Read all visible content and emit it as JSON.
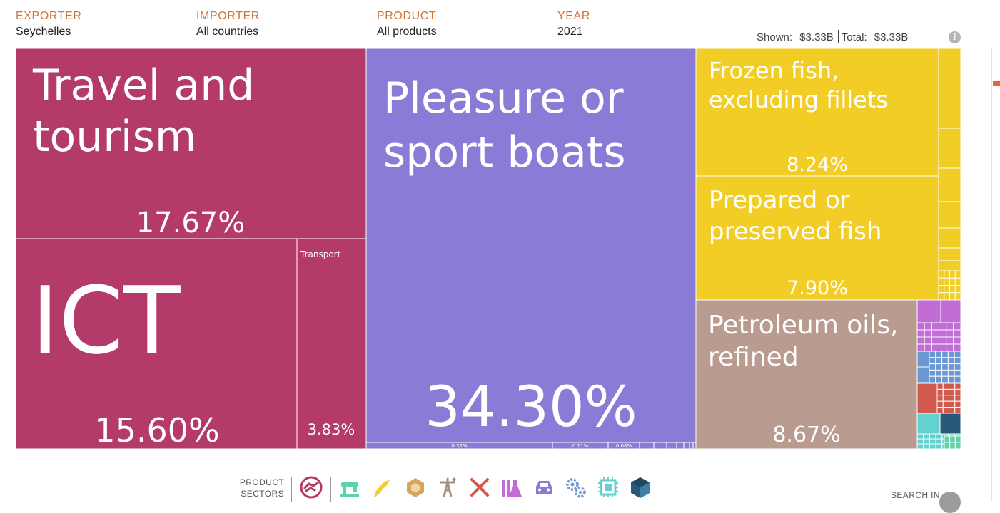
{
  "filters": [
    {
      "label": "EXPORTER",
      "value": "Seychelles"
    },
    {
      "label": "IMPORTER",
      "value": "All countries"
    },
    {
      "label": "PRODUCT",
      "value": "All products"
    },
    {
      "label": "YEAR",
      "value": "2021"
    }
  ],
  "totals": {
    "shown_label": "Shown:",
    "shown_value": "$3.33B",
    "total_label": "Total:",
    "total_value": "$3.33B"
  },
  "colors": {
    "services": "#b33a69",
    "vehicles": "#8c7bd6",
    "agriculture": "#f2cd25",
    "minerals": "#b99b8f",
    "accent": "#d0743c"
  },
  "chart_data": {
    "type": "treemap",
    "title": "",
    "items": [
      {
        "name": "Travel and tourism",
        "share_label": "17.67%",
        "value": 17.67,
        "sector": "services"
      },
      {
        "name": "ICT",
        "share_label": "15.60%",
        "value": 15.6,
        "sector": "services"
      },
      {
        "name": "Transport",
        "share_label": "3.83%",
        "value": 3.83,
        "sector": "services"
      },
      {
        "name": "Pleasure or sport boats",
        "share_label": "34.30%",
        "value": 34.3,
        "sector": "vehicles"
      },
      {
        "name": "",
        "share_label": "0.37%",
        "value": 0.37,
        "sector": "vehicles"
      },
      {
        "name": "",
        "share_label": "0.11%",
        "value": 0.11,
        "sector": "vehicles"
      },
      {
        "name": "",
        "share_label": "0.08%",
        "value": 0.08,
        "sector": "vehicles"
      },
      {
        "name": "Frozen fish, excluding fillets",
        "share_label": "8.24%",
        "value": 8.24,
        "sector": "agriculture"
      },
      {
        "name": "Prepared or preserved fish",
        "share_label": "7.90%",
        "value": 7.9,
        "sector": "agriculture"
      },
      {
        "name": "Petroleum oils, refined",
        "share_label": "8.67%",
        "value": 8.67,
        "sector": "minerals"
      }
    ]
  },
  "sectors_panel": {
    "label_line1": "PRODUCT",
    "label_line2": "SECTORS",
    "icons": [
      {
        "name": "services-icon",
        "color": "#b33a69"
      },
      {
        "name": "textiles-icon",
        "color": "#5ed3a9"
      },
      {
        "name": "agriculture-icon",
        "color": "#f2cd25"
      },
      {
        "name": "stone-icon",
        "color": "#d7a55f"
      },
      {
        "name": "minerals-icon",
        "color": "#a98e85"
      },
      {
        "name": "metals-icon",
        "color": "#d05a4f"
      },
      {
        "name": "chemicals-icon",
        "color": "#c26dd6"
      },
      {
        "name": "vehicles-icon",
        "color": "#8c7bd6"
      },
      {
        "name": "machinery-icon",
        "color": "#6b98d3"
      },
      {
        "name": "electronics-icon",
        "color": "#62d2d0"
      },
      {
        "name": "other-icon",
        "color": "#275a78"
      }
    ]
  },
  "search": {
    "label": "SEARCH IN"
  }
}
